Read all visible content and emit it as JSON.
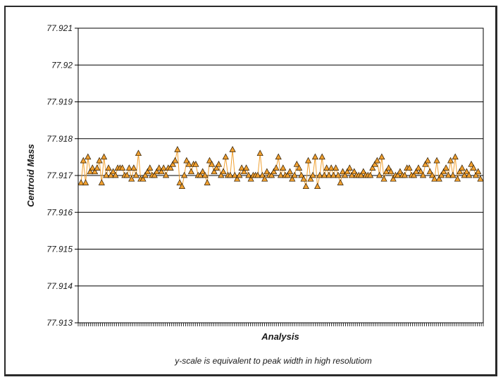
{
  "chart_data": {
    "type": "line",
    "title": "",
    "xlabel": "Analysis",
    "ylabel": "Centroid Mass",
    "note": "y-scale is equivalent to peak width in high resolutiom",
    "ylim": [
      77.913,
      77.921
    ],
    "y_ticks": [
      "77.913",
      "77.914",
      "77.915",
      "77.916",
      "77.917",
      "77.918",
      "77.919",
      "77.92",
      "77.921"
    ],
    "x_tick_count": 200,
    "grid": true,
    "legend": "none",
    "series": [
      {
        "color": "#f0a030",
        "marker": "triangle",
        "values": [
          77.9168,
          77.9174,
          77.9168,
          77.9175,
          77.9171,
          77.9172,
          77.9171,
          77.9172,
          77.9174,
          77.9168,
          77.9175,
          77.917,
          77.9172,
          77.917,
          77.9171,
          77.917,
          77.9172,
          77.9172,
          77.9172,
          77.917,
          77.917,
          77.9172,
          77.9169,
          77.9172,
          77.917,
          77.9176,
          77.9169,
          77.9169,
          77.917,
          77.9171,
          77.9172,
          77.917,
          77.917,
          77.9171,
          77.9172,
          77.9171,
          77.9172,
          77.917,
          77.9172,
          77.9172,
          77.9173,
          77.9174,
          77.9177,
          77.9168,
          77.9167,
          77.917,
          77.9174,
          77.9173,
          77.9171,
          77.9173,
          77.9173,
          77.917,
          77.917,
          77.9171,
          77.917,
          77.9168,
          77.9174,
          77.9173,
          77.9171,
          77.9172,
          77.9173,
          77.917,
          77.9171,
          77.9175,
          77.917,
          77.917,
          77.9177,
          77.917,
          77.9169,
          77.917,
          77.9172,
          77.9171,
          77.9172,
          77.917,
          77.9169,
          77.917,
          77.917,
          77.917,
          77.9176,
          77.917,
          77.9169,
          77.9171,
          77.917,
          77.917,
          77.9171,
          77.9172,
          77.9175,
          77.917,
          77.9172,
          77.917,
          77.917,
          77.9171,
          77.9169,
          77.917,
          77.9173,
          77.9172,
          77.917,
          77.9169,
          77.9167,
          77.9174,
          77.9169,
          77.917,
          77.9175,
          77.9167,
          77.917,
          77.9175,
          77.917,
          77.9172,
          77.917,
          77.9172,
          77.917,
          77.9172,
          77.917,
          77.9168,
          77.9171,
          77.917,
          77.9171,
          77.9172,
          77.917,
          77.9171,
          77.917,
          77.917,
          77.917,
          77.9171,
          77.917,
          77.917,
          77.917,
          77.9172,
          77.9173,
          77.9174,
          77.917,
          77.9175,
          77.9169,
          77.9171,
          77.9172,
          77.9171,
          77.9169,
          77.917,
          77.917,
          77.9171,
          77.917,
          77.917,
          77.9172,
          77.9172,
          77.917,
          77.917,
          77.9171,
          77.9172,
          77.9171,
          77.917,
          77.9173,
          77.9174,
          77.9171,
          77.917,
          77.9169,
          77.9174,
          77.9169,
          77.917,
          77.9171,
          77.9172,
          77.917,
          77.9174,
          77.917,
          77.9175,
          77.9169,
          77.9171,
          77.9172,
          77.917,
          77.9171,
          77.917,
          77.9173,
          77.9172,
          77.917,
          77.9171,
          77.9169
        ]
      }
    ]
  }
}
